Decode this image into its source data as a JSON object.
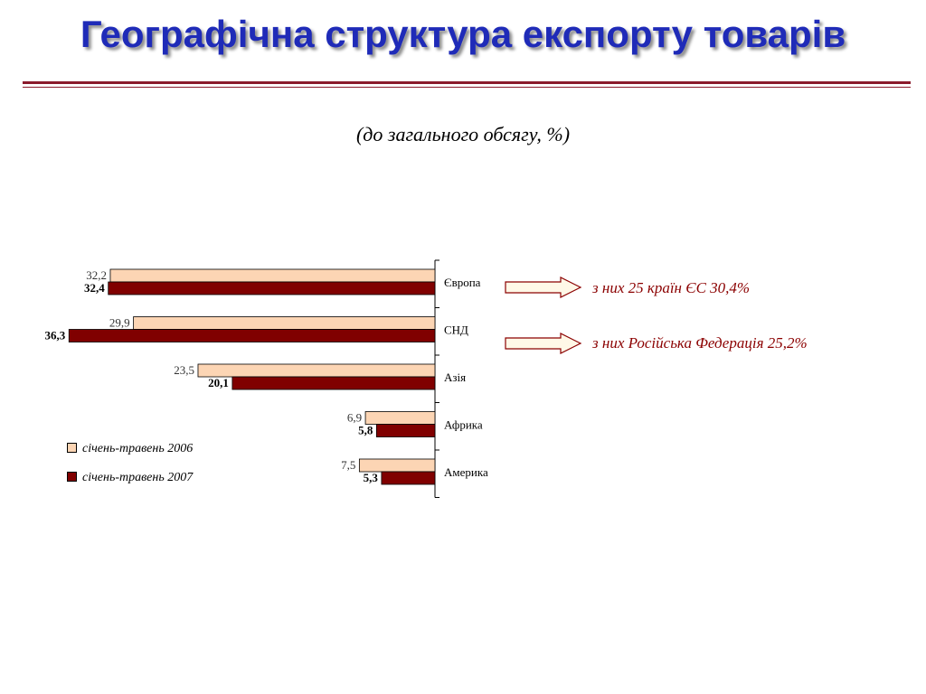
{
  "slide": {
    "title": "Географічна структура експорту товарів",
    "subtitle": "(до загального обсягу, %)",
    "rule_color": "#8b1a2b",
    "title_color": "#1f2bb8"
  },
  "chart_data": {
    "type": "bar",
    "orientation": "horizontal",
    "categories": [
      "Європа",
      "СНД",
      "Азія",
      "Африка",
      "Америка"
    ],
    "series": [
      {
        "name": "січень-травень 2006",
        "values": [
          32.2,
          29.9,
          23.5,
          6.9,
          7.5
        ],
        "labels": [
          "32,2",
          "29,9",
          "23,5",
          "6,9",
          "7,5"
        ],
        "color": "#fcd5b4"
      },
      {
        "name": "січень-травень 2007",
        "values": [
          32.4,
          36.3,
          20.1,
          5.8,
          5.3
        ],
        "labels": [
          "32,4",
          "36,3",
          "20,1",
          "5,8",
          "5,3"
        ],
        "color": "#800000"
      }
    ],
    "xlim": [
      0,
      40
    ],
    "grid": false,
    "legend_position": "bottom-left"
  },
  "annotations": [
    {
      "text": "з них   25 країн ЄС    30,4%"
    },
    {
      "text": "з них Російська Федерація   25,2%"
    }
  ]
}
